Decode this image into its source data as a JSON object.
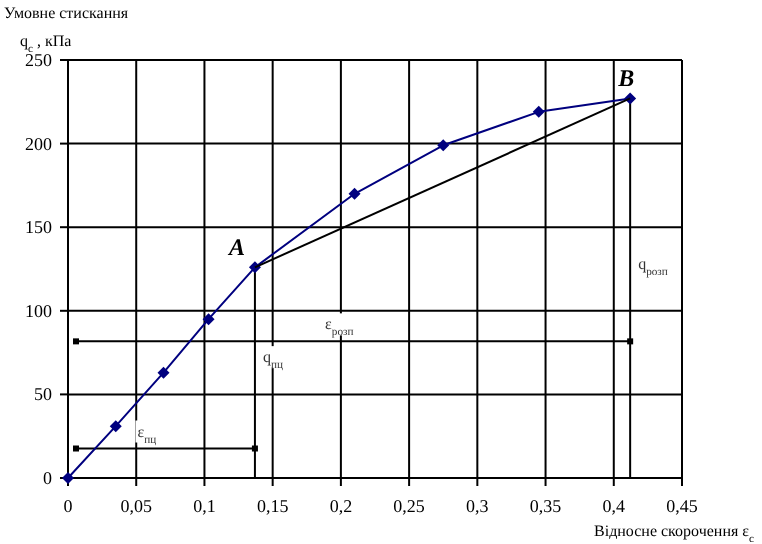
{
  "chart_data": {
    "type": "line",
    "ylabel": "Умовне стискання\nq$_{c}$ , кПа",
    "xlabel": "Відносне скорочення ε$_{c}$",
    "x": [
      0,
      0.035,
      0.07,
      0.103,
      0.137,
      0.21,
      0.275,
      0.345,
      0.412
    ],
    "series": [
      {
        "color": "#00007f",
        "values": [
          0,
          31,
          63,
          95,
          126,
          170,
          199,
          219,
          227
        ],
        "marker": "diamond"
      },
      {
        "type": "line",
        "color": "#000000",
        "x": [
          0.137,
          0.412
        ],
        "values": [
          126,
          227
        ],
        "marker": "none"
      }
    ],
    "xlim": [
      0,
      0.45
    ],
    "ylim": [
      0,
      250
    ],
    "xticks": [
      0,
      {
        "value": 0.05,
        "label": "0,05"
      },
      {
        "value": 0.1,
        "label": "0,1"
      },
      {
        "value": 0.15,
        "label": "0,15"
      },
      {
        "value": 0.2,
        "label": "0,2"
      },
      {
        "value": 0.25,
        "label": "0,25"
      },
      {
        "value": 0.3,
        "label": "0,3"
      },
      {
        "value": 0.35,
        "label": "0,35"
      },
      {
        "value": 0.4,
        "label": "0,4"
      },
      {
        "value": 0.45,
        "label": "0,45"
      }
    ],
    "yticks": [
      0,
      50,
      100,
      150,
      200,
      250
    ],
    "grid": true,
    "annotations": [
      {
        "text": "A",
        "x": 0.137,
        "y": 126
      },
      {
        "text": "B",
        "x": 0.412,
        "y": 227
      },
      "q$_{пц}$",
      "q$_{розп}$",
      "ε$_{пц}$",
      "ε$_{розп}$"
    ]
  }
}
